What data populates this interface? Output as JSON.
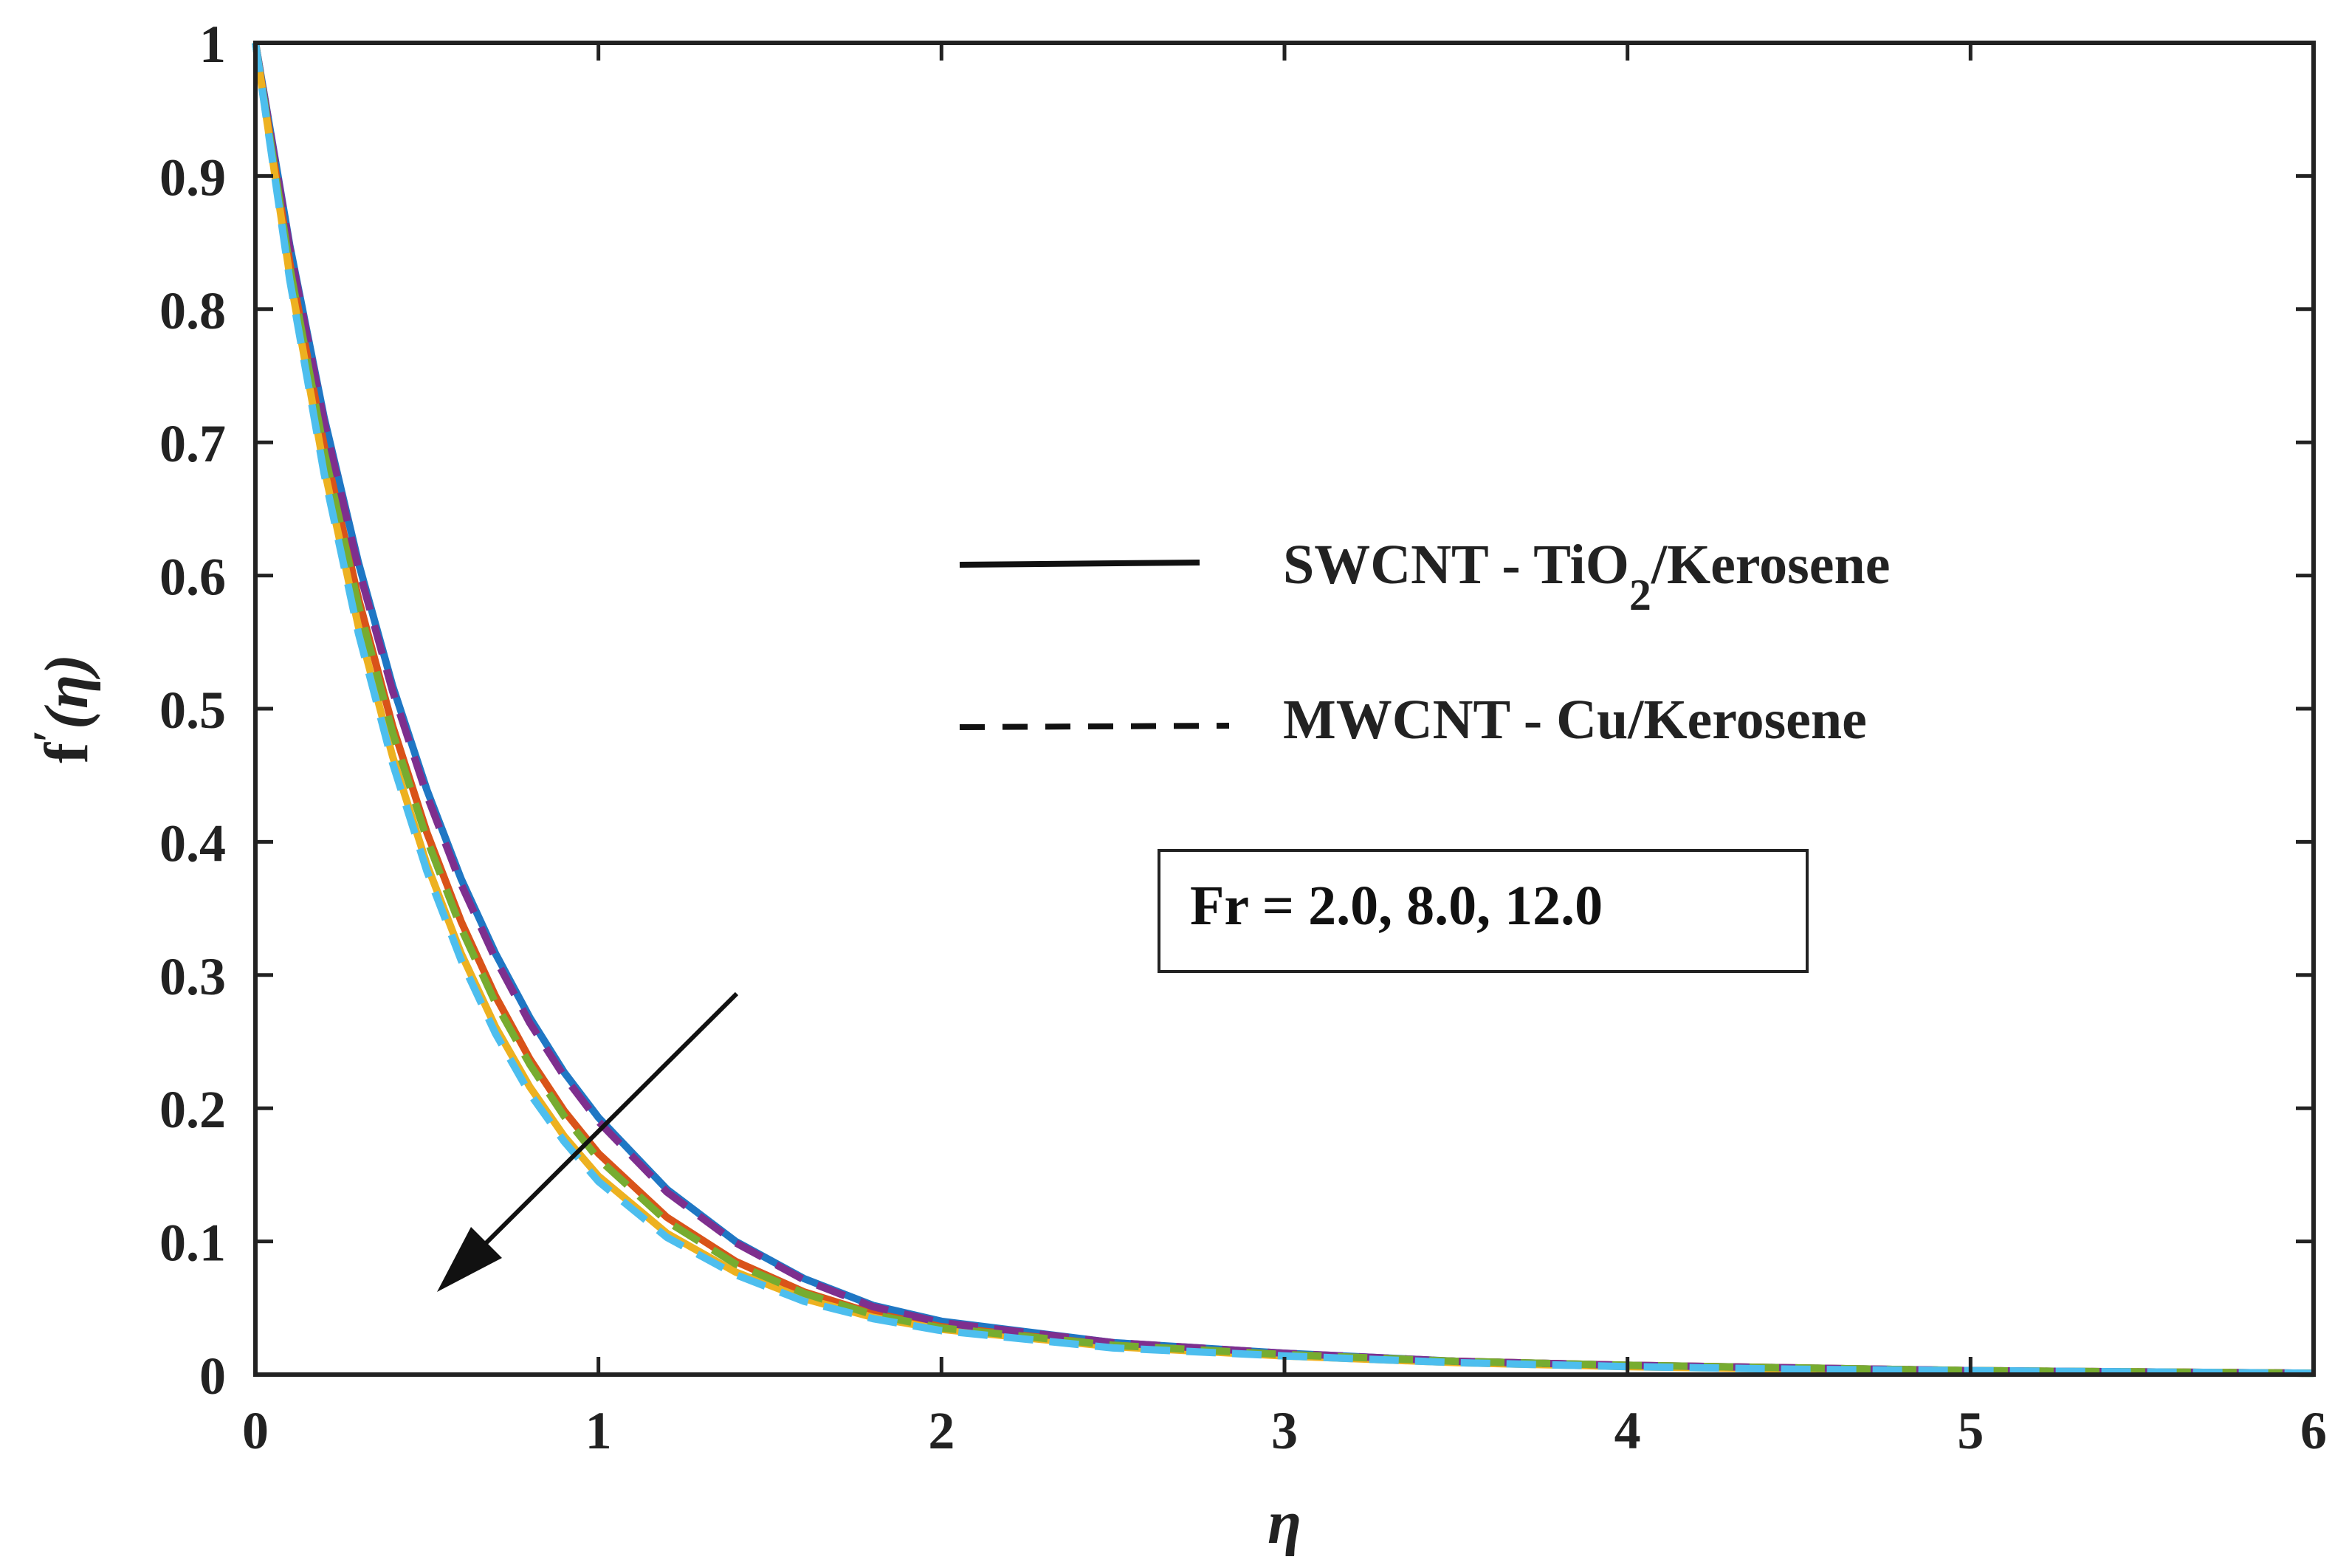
{
  "chart_data": {
    "type": "line",
    "xlabel": "η",
    "ylabel_prefix": "f",
    "ylabel_sup": "′",
    "ylabel_arg": "(η)",
    "xlim": [
      0,
      6
    ],
    "ylim": [
      0,
      1
    ],
    "x_ticks": [
      "0",
      "1",
      "2",
      "3",
      "4",
      "5",
      "6"
    ],
    "y_ticks": [
      "0",
      "0.1",
      "0.2",
      "0.3",
      "0.4",
      "0.5",
      "0.6",
      "0.7",
      "0.8",
      "0.9",
      "1"
    ],
    "grid": false,
    "legend": {
      "placement": "center-right",
      "solid_label_main": "SWCNT - TiO",
      "solid_label_sub": "2",
      "solid_label_tail": "/Kerosene",
      "dashed_label": "MWCNT - Cu/Kerosene"
    },
    "annotation": {
      "text": "Fr = 2.0, 8.0, 12.0",
      "arrow_direction": "down-left"
    },
    "x": [
      0,
      0.1,
      0.2,
      0.3,
      0.4,
      0.5,
      0.6,
      0.7,
      0.8,
      0.9,
      1.0,
      1.2,
      1.4,
      1.6,
      1.8,
      2.0,
      2.5,
      3.0,
      3.5,
      4.0,
      4.5,
      5.0,
      5.5,
      6.0
    ],
    "series": [
      {
        "style": "solid",
        "color": "#1f77c4",
        "values": [
          1,
          0.848,
          0.719,
          0.61,
          0.517,
          0.439,
          0.372,
          0.316,
          0.268,
          0.227,
          0.193,
          0.139,
          0.1,
          0.072,
          0.052,
          0.04,
          0.024,
          0.016,
          0.01,
          0.007,
          0.005,
          0.003,
          0.002,
          0.001
        ]
      },
      {
        "style": "solid",
        "color": "#d95319",
        "values": [
          1,
          0.835,
          0.698,
          0.583,
          0.487,
          0.407,
          0.34,
          0.284,
          0.237,
          0.198,
          0.166,
          0.118,
          0.085,
          0.062,
          0.046,
          0.036,
          0.022,
          0.015,
          0.01,
          0.007,
          0.005,
          0.003,
          0.002,
          0.001
        ]
      },
      {
        "style": "solid",
        "color": "#edb120",
        "values": [
          1,
          0.825,
          0.681,
          0.562,
          0.464,
          0.383,
          0.316,
          0.261,
          0.216,
          0.179,
          0.149,
          0.106,
          0.077,
          0.057,
          0.043,
          0.034,
          0.021,
          0.014,
          0.009,
          0.006,
          0.004,
          0.003,
          0.002,
          0.001
        ]
      },
      {
        "style": "dashed",
        "color": "#7e2f8e",
        "values": [
          1,
          0.846,
          0.716,
          0.606,
          0.513,
          0.435,
          0.368,
          0.312,
          0.264,
          0.224,
          0.19,
          0.137,
          0.099,
          0.071,
          0.051,
          0.039,
          0.024,
          0.016,
          0.01,
          0.007,
          0.005,
          0.003,
          0.002,
          0.001
        ]
      },
      {
        "style": "dashed",
        "color": "#77ac30",
        "values": [
          1,
          0.832,
          0.694,
          0.578,
          0.482,
          0.402,
          0.335,
          0.279,
          0.233,
          0.194,
          0.162,
          0.115,
          0.083,
          0.061,
          0.045,
          0.035,
          0.022,
          0.015,
          0.01,
          0.007,
          0.005,
          0.003,
          0.002,
          0.001
        ]
      },
      {
        "style": "dashed",
        "color": "#4dbeee",
        "values": [
          1,
          0.822,
          0.677,
          0.557,
          0.459,
          0.378,
          0.311,
          0.256,
          0.211,
          0.175,
          0.145,
          0.103,
          0.075,
          0.055,
          0.042,
          0.033,
          0.02,
          0.014,
          0.009,
          0.006,
          0.004,
          0.003,
          0.002,
          0.001
        ]
      }
    ]
  }
}
